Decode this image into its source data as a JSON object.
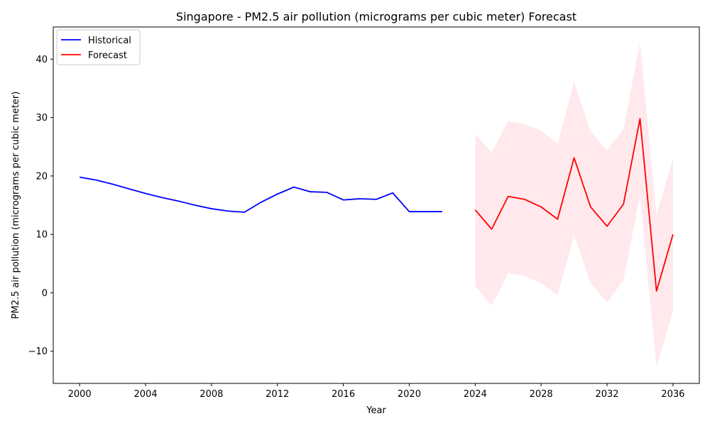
{
  "chart_data": {
    "type": "line",
    "title": "Singapore - PM2.5 air pollution (micrograms per cubic meter) Forecast",
    "xlabel": "Year",
    "ylabel": "PM2.5 air pollution (micrograms per cubic meter)",
    "xlim": [
      1998.4,
      2037.6
    ],
    "ylim": [
      -15.5,
      45.5
    ],
    "x_ticks": [
      2000,
      2004,
      2008,
      2012,
      2016,
      2020,
      2024,
      2028,
      2032,
      2036
    ],
    "y_ticks": [
      -10,
      0,
      10,
      20,
      30,
      40
    ],
    "y_tick_labels": [
      "−10",
      "0",
      "10",
      "20",
      "30",
      "40"
    ],
    "legend_position": "top-left",
    "grid": false,
    "series": [
      {
        "name": "Historical",
        "color": "#0000ff",
        "x": [
          2000,
          2001,
          2002,
          2003,
          2004,
          2005,
          2006,
          2007,
          2008,
          2009,
          2010,
          2011,
          2012,
          2013,
          2014,
          2015,
          2016,
          2017,
          2018,
          2019,
          2020,
          2021,
          2022
        ],
        "y": [
          19.8,
          19.3,
          18.6,
          17.8,
          17.0,
          16.3,
          15.7,
          15.0,
          14.4,
          14.0,
          13.8,
          15.5,
          16.9,
          18.1,
          17.3,
          17.2,
          15.9,
          16.1,
          16.0,
          17.1,
          13.9,
          13.9,
          13.9
        ]
      },
      {
        "name": "Forecast",
        "color": "#ff0000",
        "x": [
          2024,
          2025,
          2026,
          2027,
          2028,
          2029,
          2030,
          2031,
          2032,
          2033,
          2034,
          2035,
          2036
        ],
        "y": [
          14.2,
          10.9,
          16.5,
          16.0,
          14.7,
          12.6,
          23.1,
          14.7,
          11.4,
          15.2,
          29.8,
          0.3,
          10.0
        ]
      }
    ],
    "confidence_band": {
      "color": "#ffc0cb",
      "opacity": 0.35,
      "x": [
        2024,
        2025,
        2026,
        2027,
        2028,
        2029,
        2030,
        2031,
        2032,
        2033,
        2034,
        2035,
        2036
      ],
      "upper": [
        27.2,
        24.0,
        29.4,
        28.9,
        27.8,
        25.5,
        36.1,
        27.6,
        24.4,
        28.1,
        42.8,
        13.3,
        23.0
      ],
      "lower": [
        1.2,
        -2.2,
        3.4,
        2.9,
        1.6,
        -0.4,
        9.9,
        1.7,
        -1.7,
        2.2,
        16.7,
        -12.7,
        -3.1
      ]
    }
  }
}
